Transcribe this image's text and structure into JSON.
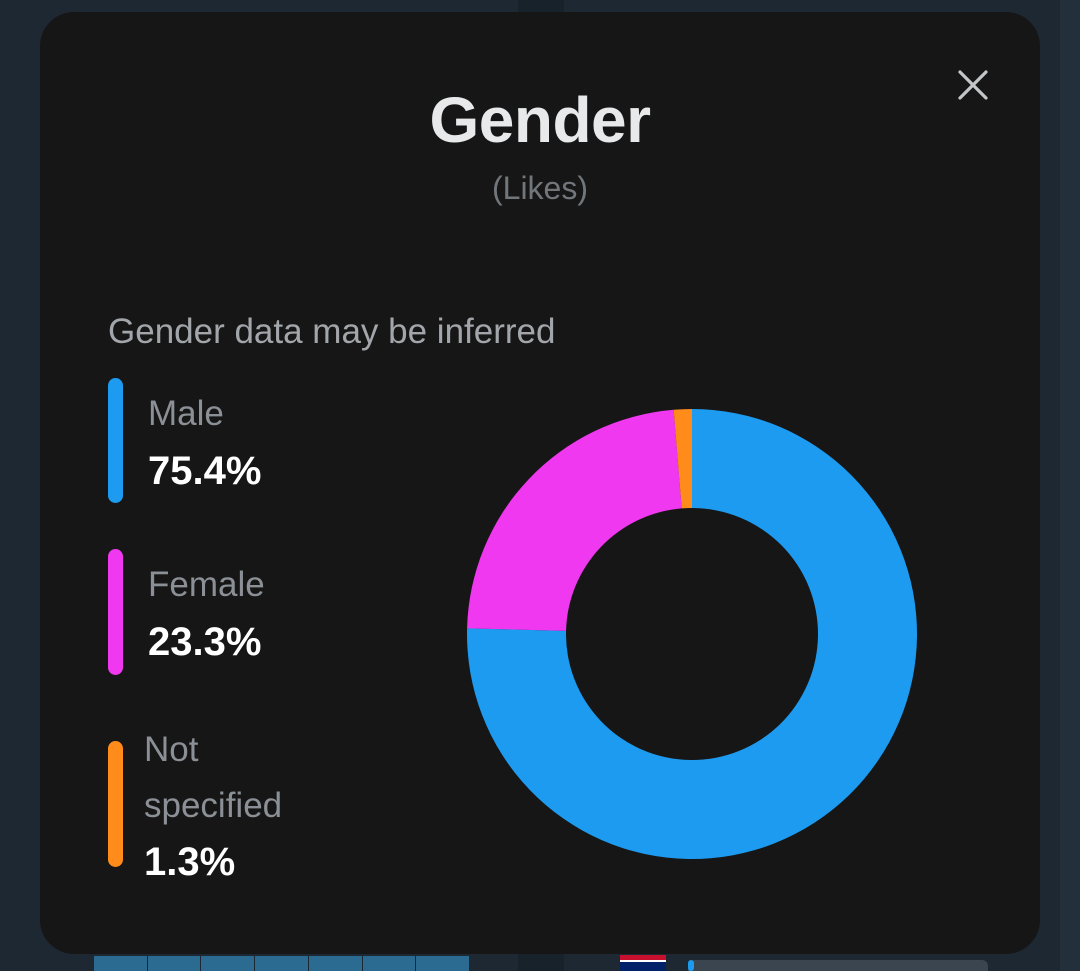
{
  "modal": {
    "title": "Gender",
    "subtitle": "(Likes)",
    "note": "Gender data may be inferred",
    "close_icon": "close-icon"
  },
  "legend": [
    {
      "label": "Male",
      "value": "75.4%",
      "color": "#1d9bf0"
    },
    {
      "label": "Female",
      "value": "23.3%",
      "color": "#f038f0"
    },
    {
      "label_lines": [
        "Not",
        "specified"
      ],
      "value": "1.3%",
      "color": "#ff8c1a"
    }
  ],
  "chart_data": {
    "type": "pie",
    "categories": [
      "Male",
      "Female",
      "Not specified"
    ],
    "values": [
      75.4,
      23.3,
      1.3
    ],
    "colors": [
      "#1d9bf0",
      "#f038f0",
      "#ff8c1a"
    ],
    "donut": true,
    "title": "Gender",
    "subtitle": "(Likes)"
  }
}
